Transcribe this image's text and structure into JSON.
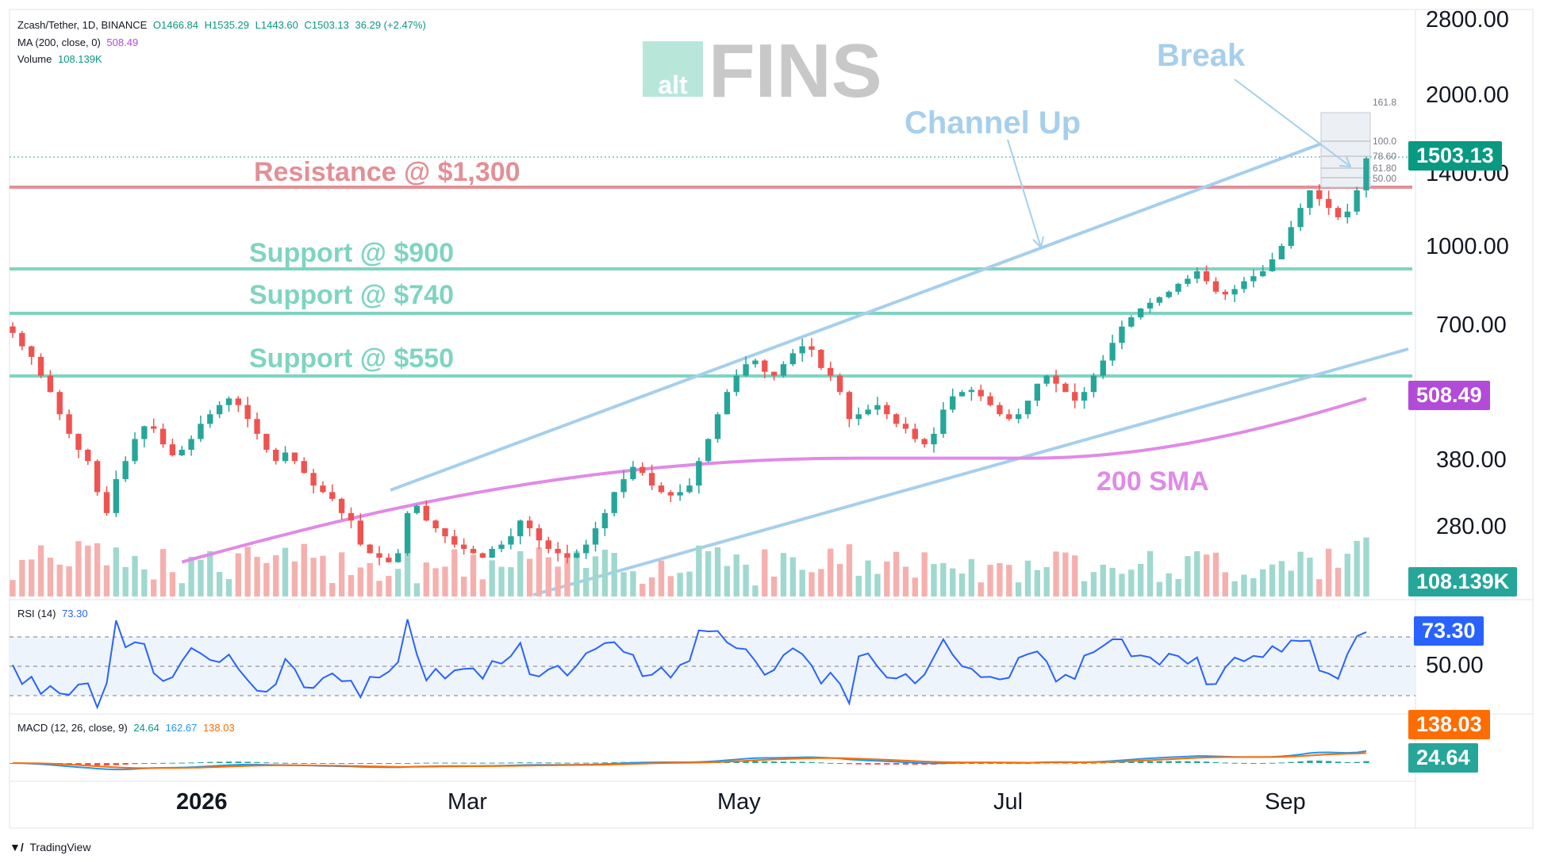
{
  "legend": {
    "symbol": "Zcash/Tether, 1D, BINANCE",
    "ohlc_o": "O1466.84",
    "ohlc_h": "H1535.29",
    "ohlc_l": "L1443.60",
    "ohlc_c": "C1503.13",
    "ohlc_chg": "36.29 (+2.47%)",
    "ma_label": "MA (200, close, 0)",
    "ma_value": "508.49",
    "vol_label": "Volume",
    "vol_value": "108.139K",
    "rsi_label": "RSI (14)",
    "rsi_value": "73.30",
    "macd_label": "MACD (12, 26, close, 9)",
    "macd_v1": "24.64",
    "macd_v2": "162.67",
    "macd_v3": "138.03"
  },
  "watermark": {
    "left": "alt",
    "right": "FINS"
  },
  "annotations": {
    "break": "Break",
    "channel": "Channel Up",
    "resistance": "Resistance @ $1,300",
    "support900": "Support @ $900",
    "support740": "Support @ $740",
    "support550": "Support @ $550",
    "sma": "200 SMA"
  },
  "price_axis": [
    "2800.00",
    "2000.00",
    "1400.00",
    "1000.00",
    "700.00",
    "380.00",
    "280.00"
  ],
  "fib_labels": [
    "161.8",
    "100.0",
    "78.60",
    "61.80",
    "50.00"
  ],
  "tags": {
    "price": "1503.13",
    "ma": "508.49",
    "volume": "108.139K",
    "rsi": "73.30",
    "rsi_mid": "50.00",
    "macd_signal": "138.03",
    "macd_hist": "24.64"
  },
  "time_axis": [
    "2026",
    "Mar",
    "May",
    "Jul",
    "Sep"
  ],
  "branding": "TradingView",
  "colors": {
    "up": "#26a69a",
    "down": "#ef5350",
    "ma": "#e08ae6",
    "resistance": "#e38f97",
    "support": "#7fd4c1",
    "channel": "#a6cfec",
    "rsi": "#2962ff",
    "macd": "#2196f3",
    "signal": "#ff6d00"
  },
  "chart_data": {
    "type": "candlestick",
    "title": "Zcash/Tether, 1D, BINANCE",
    "y_scale": "log",
    "ylim": [
      200,
      2800
    ],
    "ohlc_last": {
      "open": 1466.84,
      "high": 1535.29,
      "low": 1443.6,
      "close": 1503.13
    },
    "close_series": [
      680,
      640,
      610,
      560,
      520,
      470,
      430,
      400,
      380,
      330,
      300,
      350,
      380,
      420,
      445,
      440,
      410,
      390,
      400,
      420,
      450,
      470,
      490,
      505,
      490,
      460,
      430,
      400,
      380,
      395,
      380,
      360,
      340,
      330,
      320,
      300,
      290,
      260,
      250,
      245,
      240,
      250,
      300,
      310,
      290,
      280,
      270,
      260,
      255,
      250,
      245,
      255,
      260,
      270,
      290,
      280,
      265,
      255,
      250,
      245,
      250,
      260,
      280,
      300,
      330,
      350,
      370,
      360,
      340,
      330,
      325,
      330,
      340,
      380,
      420,
      470,
      520,
      560,
      590,
      600,
      570,
      560,
      590,
      620,
      640,
      630,
      580,
      560,
      520,
      460,
      470,
      480,
      490,
      470,
      450,
      440,
      420,
      410,
      430,
      480,
      510,
      520,
      525,
      510,
      490,
      470,
      460,
      470,
      500,
      540,
      560,
      540,
      520,
      500,
      520,
      560,
      600,
      650,
      700,
      730,
      760,
      780,
      800,
      820,
      850,
      870,
      900,
      860,
      820,
      810,
      830,
      860,
      880,
      900,
      950,
      1010,
      1100,
      1200,
      1300,
      1250,
      1200,
      1150,
      1180,
      1300,
      1503.13
    ],
    "support_levels": [
      900,
      740,
      550
    ],
    "resistance_levels": [
      1300
    ],
    "ma200_last": 508.49,
    "volume_last": "108.139K",
    "rsi": {
      "period": 14,
      "last": 73.3,
      "levels": [
        70,
        50,
        30
      ]
    },
    "macd": {
      "params": [
        12,
        26,
        9
      ],
      "histogram": 24.64,
      "macd": 162.67,
      "signal": 138.03
    },
    "fib_levels": [
      161.8,
      100.0,
      78.6,
      61.8,
      50.0
    ]
  }
}
